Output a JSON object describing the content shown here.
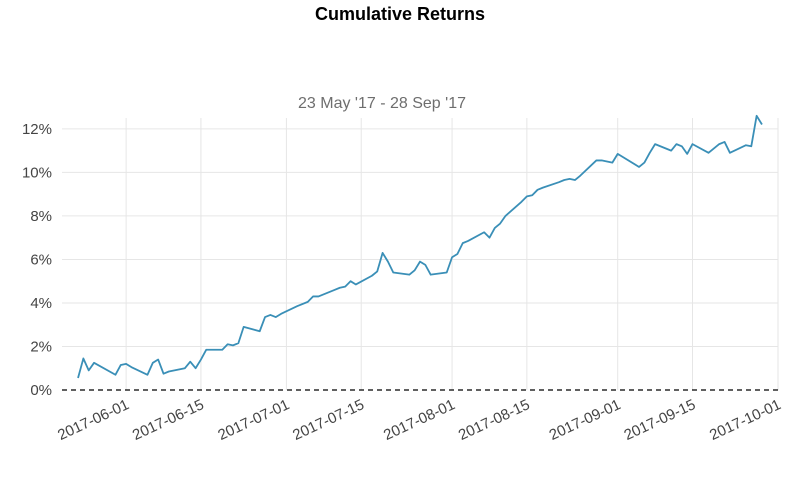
{
  "chart_data": {
    "type": "line",
    "title": "Cumulative Returns",
    "subtitle": "23 May '17 - 28 Sep '17",
    "xlabel": "",
    "ylabel": "",
    "ylim": [
      0,
      12.5
    ],
    "xlim": [
      "2017-05-20",
      "2017-10-01"
    ],
    "grid": true,
    "yticks": [
      0,
      2,
      4,
      6,
      8,
      10,
      12
    ],
    "ytick_labels": [
      "0%",
      "2%",
      "4%",
      "6%",
      "8%",
      "10%",
      "12%"
    ],
    "xticks": [
      "2017-06-01",
      "2017-06-15",
      "2017-07-01",
      "2017-07-15",
      "2017-08-01",
      "2017-08-15",
      "2017-09-01",
      "2017-09-15",
      "2017-10-01"
    ],
    "baseline": 0,
    "color": "#3a8fb7",
    "series": [
      {
        "x": [
          "2017-05-23",
          "2017-05-24",
          "2017-05-25",
          "2017-05-26",
          "2017-05-30",
          "2017-05-31",
          "2017-06-01",
          "2017-06-02",
          "2017-06-05",
          "2017-06-06",
          "2017-06-07",
          "2017-06-08",
          "2017-06-09",
          "2017-06-12",
          "2017-06-13",
          "2017-06-14",
          "2017-06-15",
          "2017-06-16",
          "2017-06-19",
          "2017-06-20",
          "2017-06-21",
          "2017-06-22",
          "2017-06-23",
          "2017-06-26",
          "2017-06-27",
          "2017-06-28",
          "2017-06-29",
          "2017-06-30",
          "2017-07-03",
          "2017-07-05",
          "2017-07-06",
          "2017-07-07",
          "2017-07-10",
          "2017-07-11",
          "2017-07-12",
          "2017-07-13",
          "2017-07-14",
          "2017-07-17",
          "2017-07-18",
          "2017-07-19",
          "2017-07-20",
          "2017-07-21",
          "2017-07-24",
          "2017-07-25",
          "2017-07-26",
          "2017-07-27",
          "2017-07-28",
          "2017-07-31",
          "2017-08-01",
          "2017-08-02",
          "2017-08-03",
          "2017-08-04",
          "2017-08-07",
          "2017-08-08",
          "2017-08-09",
          "2017-08-10",
          "2017-08-11",
          "2017-08-14",
          "2017-08-15",
          "2017-08-16",
          "2017-08-17",
          "2017-08-18",
          "2017-08-21",
          "2017-08-22",
          "2017-08-23",
          "2017-08-24",
          "2017-08-25",
          "2017-08-28",
          "2017-08-29",
          "2017-08-30",
          "2017-08-31",
          "2017-09-01",
          "2017-09-05",
          "2017-09-06",
          "2017-09-07",
          "2017-09-08",
          "2017-09-11",
          "2017-09-12",
          "2017-09-13",
          "2017-09-14",
          "2017-09-15",
          "2017-09-18",
          "2017-09-19",
          "2017-09-20",
          "2017-09-21",
          "2017-09-22",
          "2017-09-25",
          "2017-09-26",
          "2017-09-27",
          "2017-09-28"
        ],
        "values": [
          0.55,
          1.45,
          0.9,
          1.25,
          0.7,
          1.15,
          1.2,
          1.05,
          0.7,
          1.25,
          1.4,
          0.75,
          0.85,
          1.0,
          1.3,
          1.0,
          1.4,
          1.85,
          1.85,
          2.1,
          2.05,
          2.15,
          2.9,
          2.7,
          3.35,
          3.45,
          3.35,
          3.5,
          3.85,
          4.05,
          4.3,
          4.3,
          4.6,
          4.7,
          4.75,
          5.0,
          4.85,
          5.25,
          5.45,
          6.3,
          5.9,
          5.4,
          5.3,
          5.5,
          5.9,
          5.75,
          5.3,
          5.4,
          6.1,
          6.25,
          6.75,
          6.85,
          7.25,
          7.0,
          7.45,
          7.65,
          8.0,
          8.65,
          8.9,
          8.95,
          9.2,
          9.3,
          9.55,
          9.65,
          9.7,
          9.65,
          9.85,
          10.55,
          10.55,
          10.5,
          10.45,
          10.85,
          10.25,
          10.45,
          10.9,
          11.3,
          11.0,
          11.3,
          11.2,
          10.85,
          11.3,
          10.9,
          11.1,
          11.3,
          11.4,
          10.9,
          11.25,
          11.2,
          12.6,
          12.2
        ]
      }
    ]
  }
}
